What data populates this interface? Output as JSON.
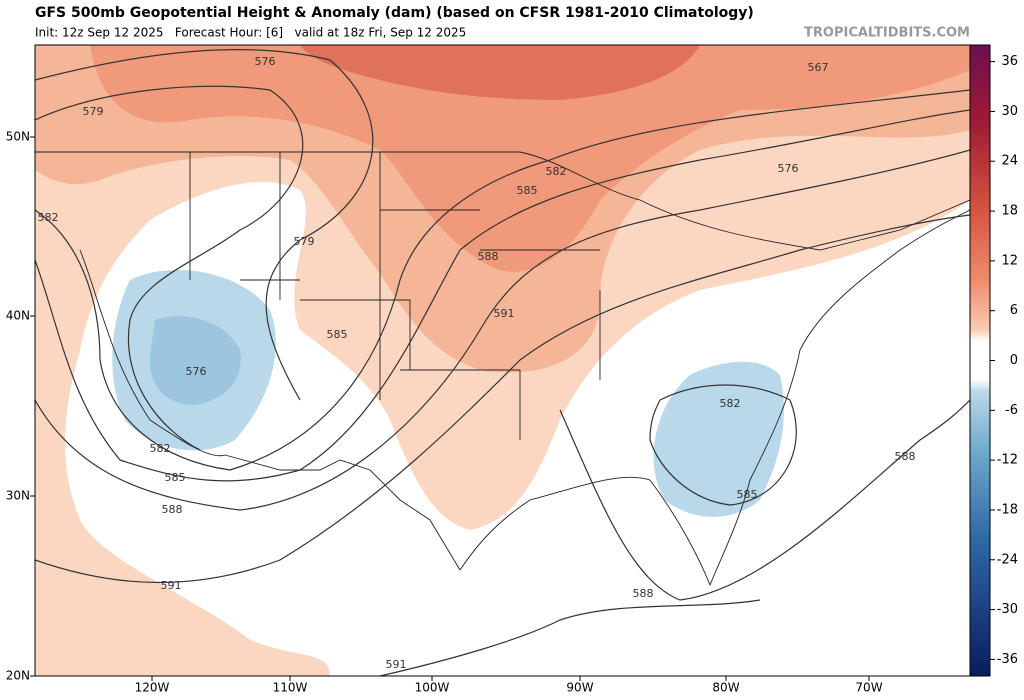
{
  "header": {
    "title": "GFS 500mb Geopotential Height & Anomaly (dam) (based on CFSR 1981-2010 Climatology)",
    "subtitle": "Init: 12z Sep 12 2025   Forecast Hour: [6]   valid at 18z Fri, Sep 12 2025",
    "brand": "TROPICALTIDBITS.COM"
  },
  "map": {
    "lat_labels": [
      "50N",
      "40N",
      "30N",
      "20N"
    ],
    "lon_labels": [
      "120W",
      "110W",
      "100W",
      "90W",
      "80W",
      "70W"
    ],
    "contour_labels": [
      "576",
      "579",
      "582",
      "567",
      "582",
      "585",
      "576",
      "579",
      "588",
      "591",
      "585",
      "576",
      "582",
      "585",
      "588",
      "591",
      "582",
      "585",
      "588",
      "588",
      "591"
    ]
  },
  "colorbar": {
    "lim": [
      -38,
      38
    ],
    "ticks": [
      36,
      30,
      24,
      18,
      12,
      6,
      0,
      -6,
      -12,
      -18,
      -24,
      -30,
      -36
    ]
  }
}
